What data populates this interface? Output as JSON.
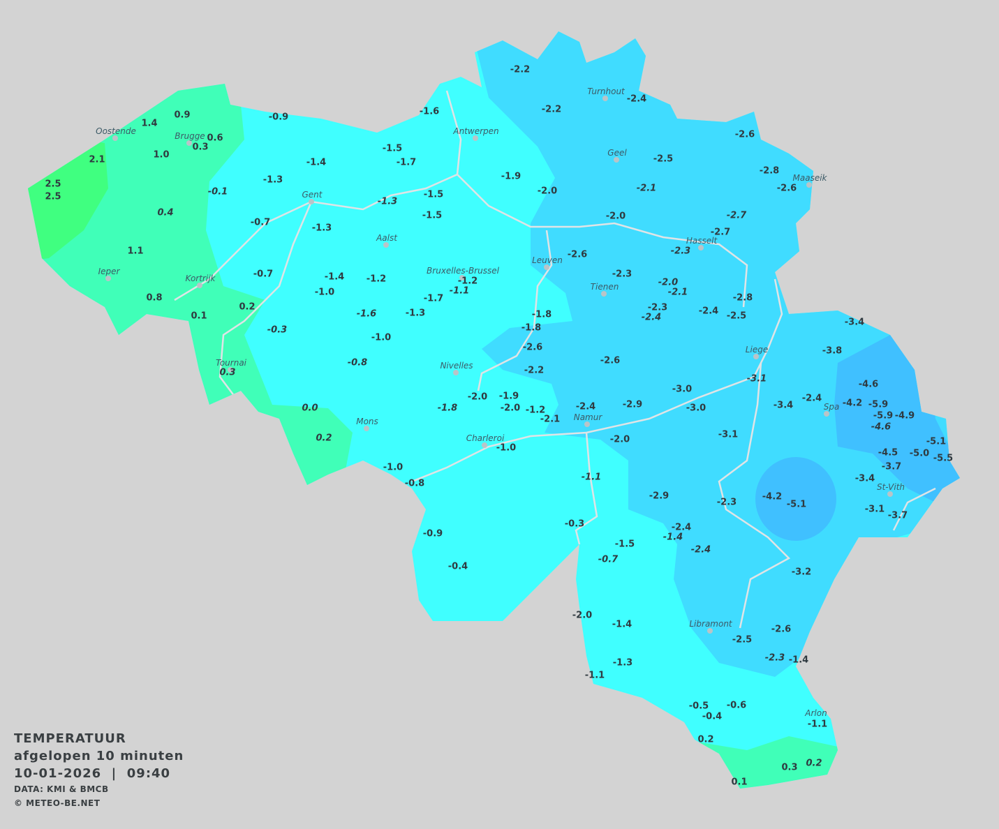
{
  "legend": {
    "title": "TEMPERATUUR",
    "subtitle": "afgelopen 10 minuten",
    "datetime": "10-01-2026  |  09:40",
    "source": "DATA: KMI & BMCB",
    "copyright": "© METEO-BE.NET"
  },
  "colors": {
    "background": "#d3d3d3",
    "zone_above_2": "#40ff80",
    "zone_0_to_2": "#40ffb8",
    "zone_-2_to_0": "#40ffff",
    "zone_-4_to_-2": "#40dcff",
    "zone_below_-4": "#40c0ff",
    "rivers": "#e0e4e6",
    "text": "#2f3a40"
  },
  "cities": [
    "Oostende",
    "Brugge",
    "Antwerpen",
    "Turnhout",
    "Geel",
    "Maaseik",
    "Gent",
    "Aalst",
    "Hasselt",
    "Leuven",
    "Ieper",
    "Kortrijk",
    "Bruxelles-Brussel",
    "Tienen",
    "Liege",
    "Nivelles",
    "Tournai",
    "Spa",
    "Namur",
    "Mons",
    "Charleroi",
    "St-Vith",
    "Libramont",
    "Arlon"
  ],
  "stations": [
    {
      "v": "-2.2"
    },
    {
      "v": "-2.4"
    },
    {
      "v": "-2.2"
    },
    {
      "v": "-0.9"
    },
    {
      "v": "-1.6"
    },
    {
      "v": "0.9"
    },
    {
      "v": "1.4"
    },
    {
      "v": "0.6"
    },
    {
      "v": "0.3"
    },
    {
      "v": "1.0"
    },
    {
      "v": "2.1"
    },
    {
      "v": "-1.5"
    },
    {
      "v": "-1.7"
    },
    {
      "v": "-1.4"
    },
    {
      "v": "-2.6"
    },
    {
      "v": "-2.5"
    },
    {
      "v": "-2.8"
    },
    {
      "v": "-2.6"
    },
    {
      "v": "-1.9"
    },
    {
      "v": "2.5"
    },
    {
      "v": "2.5"
    },
    {
      "v": "-1.3"
    },
    {
      "v": "-0.1",
      "italic": true
    },
    {
      "v": "-2.0"
    },
    {
      "v": "-2.1",
      "italic": true
    },
    {
      "v": "-1.3",
      "italic": true
    },
    {
      "v": "-1.5"
    },
    {
      "v": "-1.5"
    },
    {
      "v": "0.4",
      "italic": true
    },
    {
      "v": "-0.7"
    },
    {
      "v": "-1.3"
    },
    {
      "v": "-2.0"
    },
    {
      "v": "-2.7",
      "italic": true
    },
    {
      "v": "-2.7"
    },
    {
      "v": "-2.3",
      "italic": true
    },
    {
      "v": "1.1"
    },
    {
      "v": "-2.6"
    },
    {
      "v": "-0.7"
    },
    {
      "v": "-1.4"
    },
    {
      "v": "-1.2"
    },
    {
      "v": "-1.2"
    },
    {
      "v": "-1.1",
      "italic": true
    },
    {
      "v": "-1.0"
    },
    {
      "v": "-2.3"
    },
    {
      "v": "-2.0",
      "italic": true
    },
    {
      "v": "-2.1",
      "italic": true
    },
    {
      "v": "-1.7"
    },
    {
      "v": "0.8"
    },
    {
      "v": "-2.8"
    },
    {
      "v": "0.2"
    },
    {
      "v": "0.1"
    },
    {
      "v": "-1.6",
      "italic": true
    },
    {
      "v": "-1.3"
    },
    {
      "v": "-2.3"
    },
    {
      "v": "-2.4",
      "italic": true
    },
    {
      "v": "-2.4"
    },
    {
      "v": "-2.5"
    },
    {
      "v": "-1.8"
    },
    {
      "v": "-1.8"
    },
    {
      "v": "-0.3",
      "italic": true
    },
    {
      "v": "-1.0"
    },
    {
      "v": "-3.4"
    },
    {
      "v": "-3.8"
    },
    {
      "v": "-2.6"
    },
    {
      "v": "-2.6"
    },
    {
      "v": "-0.8",
      "italic": true
    },
    {
      "v": "-2.2"
    },
    {
      "v": "0.3",
      "italic": true
    },
    {
      "v": "-3.1",
      "italic": true
    },
    {
      "v": "-4.6"
    },
    {
      "v": "-3.0"
    },
    {
      "v": "-2.0"
    },
    {
      "v": "-1.9"
    },
    {
      "v": "-1.8",
      "italic": true
    },
    {
      "v": "-2.0"
    },
    {
      "v": "-1.2"
    },
    {
      "v": "-2.4"
    },
    {
      "v": "-2.9"
    },
    {
      "v": "-3.0"
    },
    {
      "v": "-3.4"
    },
    {
      "v": "-2.4"
    },
    {
      "v": "-4.2"
    },
    {
      "v": "-5.9"
    },
    {
      "v": "-5.9"
    },
    {
      "v": "-4.9"
    },
    {
      "v": "-4.6",
      "italic": true
    },
    {
      "v": "0.0",
      "italic": true
    },
    {
      "v": "-2.1"
    },
    {
      "v": "0.2",
      "italic": true
    },
    {
      "v": "-2.0"
    },
    {
      "v": "-3.1"
    },
    {
      "v": "-1.0"
    },
    {
      "v": "-5.1"
    },
    {
      "v": "-5.0"
    },
    {
      "v": "-5.5"
    },
    {
      "v": "-4.5"
    },
    {
      "v": "-3.7"
    },
    {
      "v": "-1.0"
    },
    {
      "v": "-1.1",
      "italic": true
    },
    {
      "v": "-3.4"
    },
    {
      "v": "-0.8"
    },
    {
      "v": "-2.9"
    },
    {
      "v": "-2.3"
    },
    {
      "v": "-4.2"
    },
    {
      "v": "-5.1"
    },
    {
      "v": "-3.1"
    },
    {
      "v": "-3.7"
    },
    {
      "v": "-0.3"
    },
    {
      "v": "-2.4"
    },
    {
      "v": "-1.4",
      "italic": true
    },
    {
      "v": "-0.9"
    },
    {
      "v": "-1.5"
    },
    {
      "v": "-2.4",
      "italic": true
    },
    {
      "v": "-0.7",
      "italic": true
    },
    {
      "v": "-0.4"
    },
    {
      "v": "-3.2"
    },
    {
      "v": "-2.0"
    },
    {
      "v": "-1.4"
    },
    {
      "v": "-2.6"
    },
    {
      "v": "-2.5"
    },
    {
      "v": "-2.3",
      "italic": true
    },
    {
      "v": "-1.4"
    },
    {
      "v": "-1.3"
    },
    {
      "v": "-1.1"
    },
    {
      "v": "-0.5"
    },
    {
      "v": "-0.6"
    },
    {
      "v": "-0.4"
    },
    {
      "v": "-1.1"
    },
    {
      "v": "0.2"
    },
    {
      "v": "0.3"
    },
    {
      "v": "0.2",
      "italic": true
    },
    {
      "v": "0.1"
    }
  ]
}
